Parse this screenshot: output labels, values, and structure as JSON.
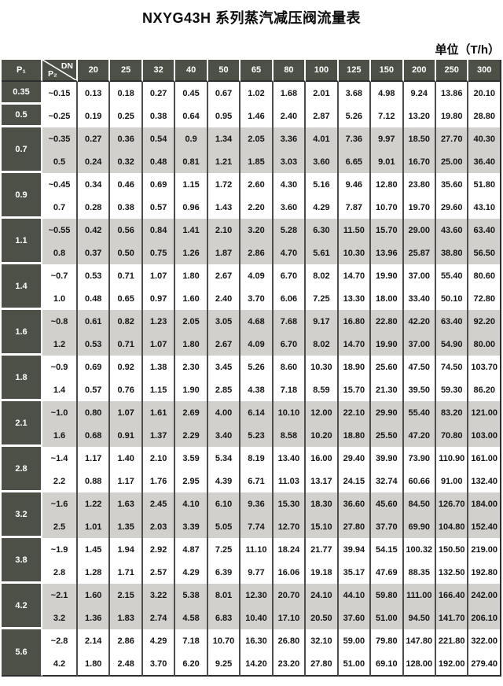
{
  "title": "NXYG43H 系列蒸汽减压阀流量表",
  "unit_label": "单位（T/h）",
  "table": {
    "header": {
      "p1_label": "P₁",
      "p2_label": "P₂",
      "dn_label": "DN",
      "dn_columns": [
        "20",
        "25",
        "32",
        "40",
        "50",
        "65",
        "80",
        "100",
        "125",
        "150",
        "200",
        "250",
        "300"
      ]
    },
    "groups": [
      {
        "p1": "0.35",
        "rows": [
          {
            "p2": "~0.15",
            "values": [
              "0.13",
              "0.18",
              "0.27",
              "0.45",
              "0.67",
              "1.02",
              "1.68",
              "2.01",
              "3.68",
              "4.98",
              "9.24",
              "13.86",
              "20.10"
            ]
          }
        ]
      },
      {
        "p1": "0.5",
        "rows": [
          {
            "p2": "~0.25",
            "values": [
              "0.19",
              "0.25",
              "0.38",
              "0.64",
              "0.95",
              "1.46",
              "2.40",
              "2.87",
              "5.26",
              "7.12",
              "13.20",
              "19.80",
              "28.80"
            ]
          }
        ]
      },
      {
        "p1": "0.7",
        "rows": [
          {
            "p2": "~0.35",
            "values": [
              "0.27",
              "0.36",
              "0.54",
              "0.9",
              "1.34",
              "2.05",
              "3.36",
              "4.01",
              "7.36",
              "9.97",
              "18.50",
              "27.70",
              "40.30"
            ]
          },
          {
            "p2": "0.5",
            "values": [
              "0.24",
              "0.32",
              "0.48",
              "0.81",
              "1.21",
              "1.85",
              "3.03",
              "3.60",
              "6.65",
              "9.01",
              "16.70",
              "25.00",
              "36.40"
            ]
          }
        ]
      },
      {
        "p1": "0.9",
        "rows": [
          {
            "p2": "~0.45",
            "values": [
              "0.34",
              "0.46",
              "0.69",
              "1.15",
              "1.72",
              "2.60",
              "4.30",
              "5.16",
              "9.46",
              "12.80",
              "23.80",
              "35.60",
              "51.80"
            ]
          },
          {
            "p2": "0.7",
            "values": [
              "0.28",
              "0.38",
              "0.57",
              "0.96",
              "1.43",
              "2.20",
              "3.60",
              "4.29",
              "7.87",
              "10.70",
              "19.70",
              "29.60",
              "43.10"
            ]
          }
        ]
      },
      {
        "p1": "1.1",
        "rows": [
          {
            "p2": "~0.55",
            "values": [
              "0.42",
              "0.56",
              "0.84",
              "1.41",
              "2.10",
              "3.20",
              "5.28",
              "6.30",
              "11.50",
              "15.70",
              "29.00",
              "43.60",
              "63.40"
            ]
          },
          {
            "p2": "0.8",
            "values": [
              "0.37",
              "0.50",
              "0.75",
              "1.26",
              "1.87",
              "2.86",
              "4.70",
              "5.61",
              "10.30",
              "13.96",
              "25.87",
              "38.80",
              "56.50"
            ]
          }
        ]
      },
      {
        "p1": "1.4",
        "rows": [
          {
            "p2": "~0.7",
            "values": [
              "0.53",
              "0.71",
              "1.07",
              "1.80",
              "2.67",
              "4.09",
              "6.70",
              "8.02",
              "14.70",
              "19.90",
              "37.00",
              "55.40",
              "80.60"
            ]
          },
          {
            "p2": "1.0",
            "values": [
              "0.48",
              "0.65",
              "0.97",
              "1.60",
              "2.40",
              "3.70",
              "6.06",
              "7.25",
              "13.30",
              "18.00",
              "33.40",
              "50.10",
              "72.80"
            ]
          }
        ]
      },
      {
        "p1": "1.6",
        "rows": [
          {
            "p2": "~0.8",
            "values": [
              "0.61",
              "0.82",
              "1.23",
              "2.05",
              "3.05",
              "4.68",
              "7.68",
              "9.17",
              "16.80",
              "22.80",
              "42.20",
              "63.40",
              "92.20"
            ]
          },
          {
            "p2": "1.2",
            "values": [
              "0.53",
              "0.71",
              "1.07",
              "1.80",
              "2.67",
              "4.09",
              "6.70",
              "8.02",
              "14.70",
              "19.90",
              "37.00",
              "54.90",
              "80.00"
            ]
          }
        ]
      },
      {
        "p1": "1.8",
        "rows": [
          {
            "p2": "~0.9",
            "values": [
              "0.69",
              "0.92",
              "1.38",
              "2.30",
              "3.45",
              "5.26",
              "8.60",
              "10.30",
              "18.90",
              "25.60",
              "47.50",
              "74.50",
              "103.70"
            ]
          },
          {
            "p2": "1.4",
            "values": [
              "0.57",
              "0.76",
              "1.15",
              "1.90",
              "2.85",
              "4.38",
              "7.18",
              "8.59",
              "15.70",
              "21.30",
              "39.50",
              "59.30",
              "86.20"
            ]
          }
        ]
      },
      {
        "p1": "2.1",
        "rows": [
          {
            "p2": "~1.0",
            "values": [
              "0.80",
              "1.07",
              "1.61",
              "2.69",
              "4.00",
              "6.14",
              "10.10",
              "12.00",
              "22.10",
              "29.90",
              "55.40",
              "83.20",
              "121.00"
            ]
          },
          {
            "p2": "1.6",
            "values": [
              "0.68",
              "0.91",
              "1.37",
              "2.29",
              "3.40",
              "5.23",
              "8.58",
              "10.20",
              "18.80",
              "25.50",
              "47.20",
              "70.80",
              "103.00"
            ]
          }
        ]
      },
      {
        "p1": "2.8",
        "rows": [
          {
            "p2": "~1.4",
            "values": [
              "1.17",
              "1.40",
              "2.10",
              "3.59",
              "5.34",
              "8.19",
              "13.40",
              "16.00",
              "29.40",
              "39.90",
              "73.90",
              "110.90",
              "161.00"
            ]
          },
          {
            "p2": "2.2",
            "values": [
              "0.88",
              "1.17",
              "1.76",
              "2.95",
              "4.39",
              "6.71",
              "11.03",
              "13.17",
              "24.15",
              "32.74",
              "60.66",
              "91.00",
              "132.40"
            ]
          }
        ]
      },
      {
        "p1": "3.2",
        "rows": [
          {
            "p2": "~1.6",
            "values": [
              "1.22",
              "1.63",
              "2.45",
              "4.10",
              "6.10",
              "9.36",
              "15.30",
              "18.30",
              "36.60",
              "45.60",
              "84.50",
              "126.70",
              "184.00"
            ]
          },
          {
            "p2": "2.5",
            "values": [
              "1.01",
              "1.35",
              "2.03",
              "3.39",
              "5.05",
              "7.74",
              "12.70",
              "15.10",
              "27.80",
              "37.70",
              "69.90",
              "104.80",
              "152.40"
            ]
          }
        ]
      },
      {
        "p1": "3.8",
        "rows": [
          {
            "p2": "~1.9",
            "values": [
              "1.45",
              "1.94",
              "2.92",
              "4.87",
              "7.25",
              "11.10",
              "18.24",
              "21.77",
              "39.94",
              "54.15",
              "100.32",
              "150.50",
              "219.00"
            ]
          },
          {
            "p2": "2.8",
            "values": [
              "1.28",
              "1.71",
              "2.57",
              "4.29",
              "6.39",
              "9.77",
              "16.06",
              "19.18",
              "35.17",
              "47.69",
              "88.35",
              "132.50",
              "192.80"
            ]
          }
        ]
      },
      {
        "p1": "4.2",
        "rows": [
          {
            "p2": "~2.1",
            "values": [
              "1.60",
              "2.15",
              "3.22",
              "5.38",
              "8.01",
              "12.30",
              "20.70",
              "24.10",
              "44.10",
              "59.80",
              "111.00",
              "166.40",
              "242.00"
            ]
          },
          {
            "p2": "3.2",
            "values": [
              "1.36",
              "1.83",
              "2.74",
              "4.58",
              "6.83",
              "10.40",
              "17.10",
              "20.50",
              "37.60",
              "51.00",
              "94.50",
              "141.70",
              "206.10"
            ]
          }
        ]
      },
      {
        "p1": "5.6",
        "rows": [
          {
            "p2": "~2.8",
            "values": [
              "2.14",
              "2.86",
              "4.29",
              "7.18",
              "10.70",
              "16.30",
              "26.80",
              "32.10",
              "59.00",
              "79.80",
              "147.80",
              "221.80",
              "322.00"
            ]
          },
          {
            "p2": "4.2",
            "values": [
              "1.80",
              "2.48",
              "3.70",
              "6.20",
              "9.25",
              "14.20",
              "23.20",
              "27.80",
              "51.00",
              "69.10",
              "128.00",
              "192.00",
              "279.40"
            ]
          }
        ]
      }
    ]
  }
}
